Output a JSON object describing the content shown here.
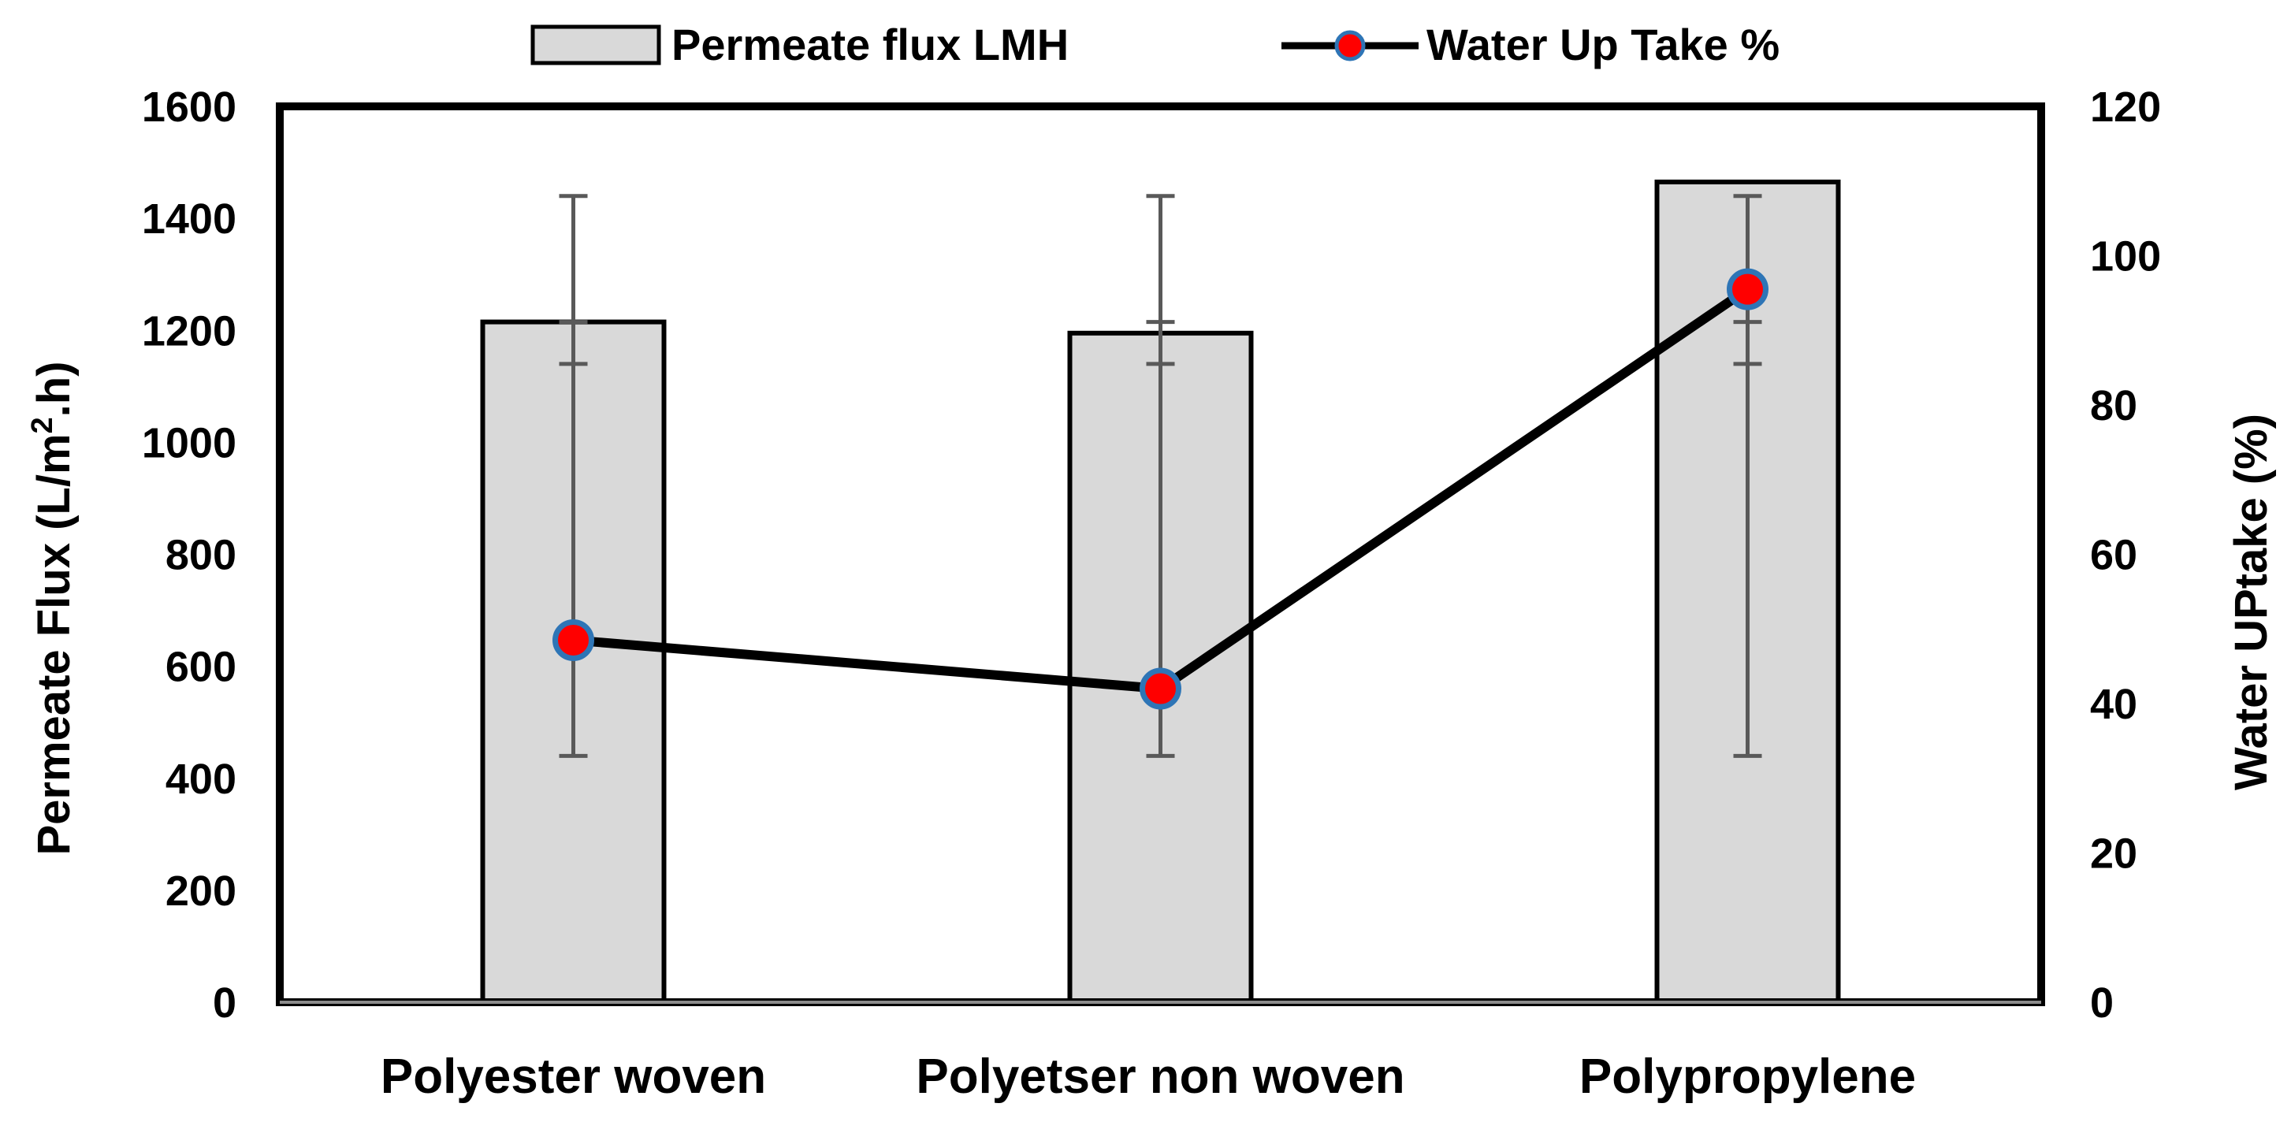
{
  "chart_data": {
    "type": "bar",
    "categories": [
      "Polyester woven",
      "Polyetser non woven",
      "Polypropylene"
    ],
    "series": [
      {
        "name": "Permeate flux LMH",
        "type": "bar",
        "axis": "left",
        "values": [
          1215,
          1195,
          1465
        ],
        "error_low": [
          440,
          440,
          440
        ],
        "error_high": [
          1440,
          1440,
          1440
        ],
        "error_caps": [
          1215,
          1215,
          1215
        ],
        "error_caps_low": [
          1140,
          1140,
          1140
        ],
        "color": "#d9d9d9"
      },
      {
        "name": "Water Up Take %",
        "type": "line",
        "axis": "right",
        "values": [
          48.5,
          42.0,
          95.5
        ],
        "line_color": "#000000",
        "marker_color": "#ff0000",
        "marker_edge_color": "#2e75b6"
      }
    ],
    "ylabel": "Permeate Flux (L/m².h)",
    "ylabel_base": "Permeate Flux (L/m",
    "ylabel_sup": "2",
    "ylabel_tail": ".h)",
    "y2label": "Water UPtake (%)",
    "ylim": [
      0,
      1600
    ],
    "y2lim": [
      0,
      120
    ],
    "yticks": [
      "0",
      "200",
      "400",
      "600",
      "800",
      "1000",
      "1200",
      "1400",
      "1600"
    ],
    "y2ticks": [
      "0",
      "20",
      "40",
      "60",
      "80",
      "100",
      "120"
    ],
    "legend": "top-center",
    "grid": false
  }
}
